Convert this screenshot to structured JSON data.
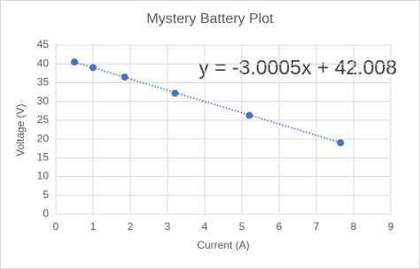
{
  "chart_data": {
    "type": "scatter",
    "title": "Mystery Battery Plot",
    "x_label": "Current (A)",
    "y_label": "Voltage (V)",
    "x": [
      0.5,
      1.0,
      1.85,
      3.2,
      5.2,
      7.65
    ],
    "values": [
      40.5,
      39.0,
      36.5,
      32.2,
      26.3,
      19.0
    ],
    "color": "#4472c4",
    "trendline": {
      "slope": -3.0005,
      "intercept": 42.008,
      "label": "y = -3.0005x + 42.008"
    },
    "xlim": [
      0,
      9
    ],
    "xticks": [
      0,
      1,
      2,
      3,
      4,
      5,
      6,
      7,
      8,
      9
    ],
    "ylim": [
      0,
      45
    ],
    "yticks": [
      0,
      5,
      10,
      15,
      20,
      25,
      30,
      35,
      40,
      45
    ],
    "grid": true
  }
}
